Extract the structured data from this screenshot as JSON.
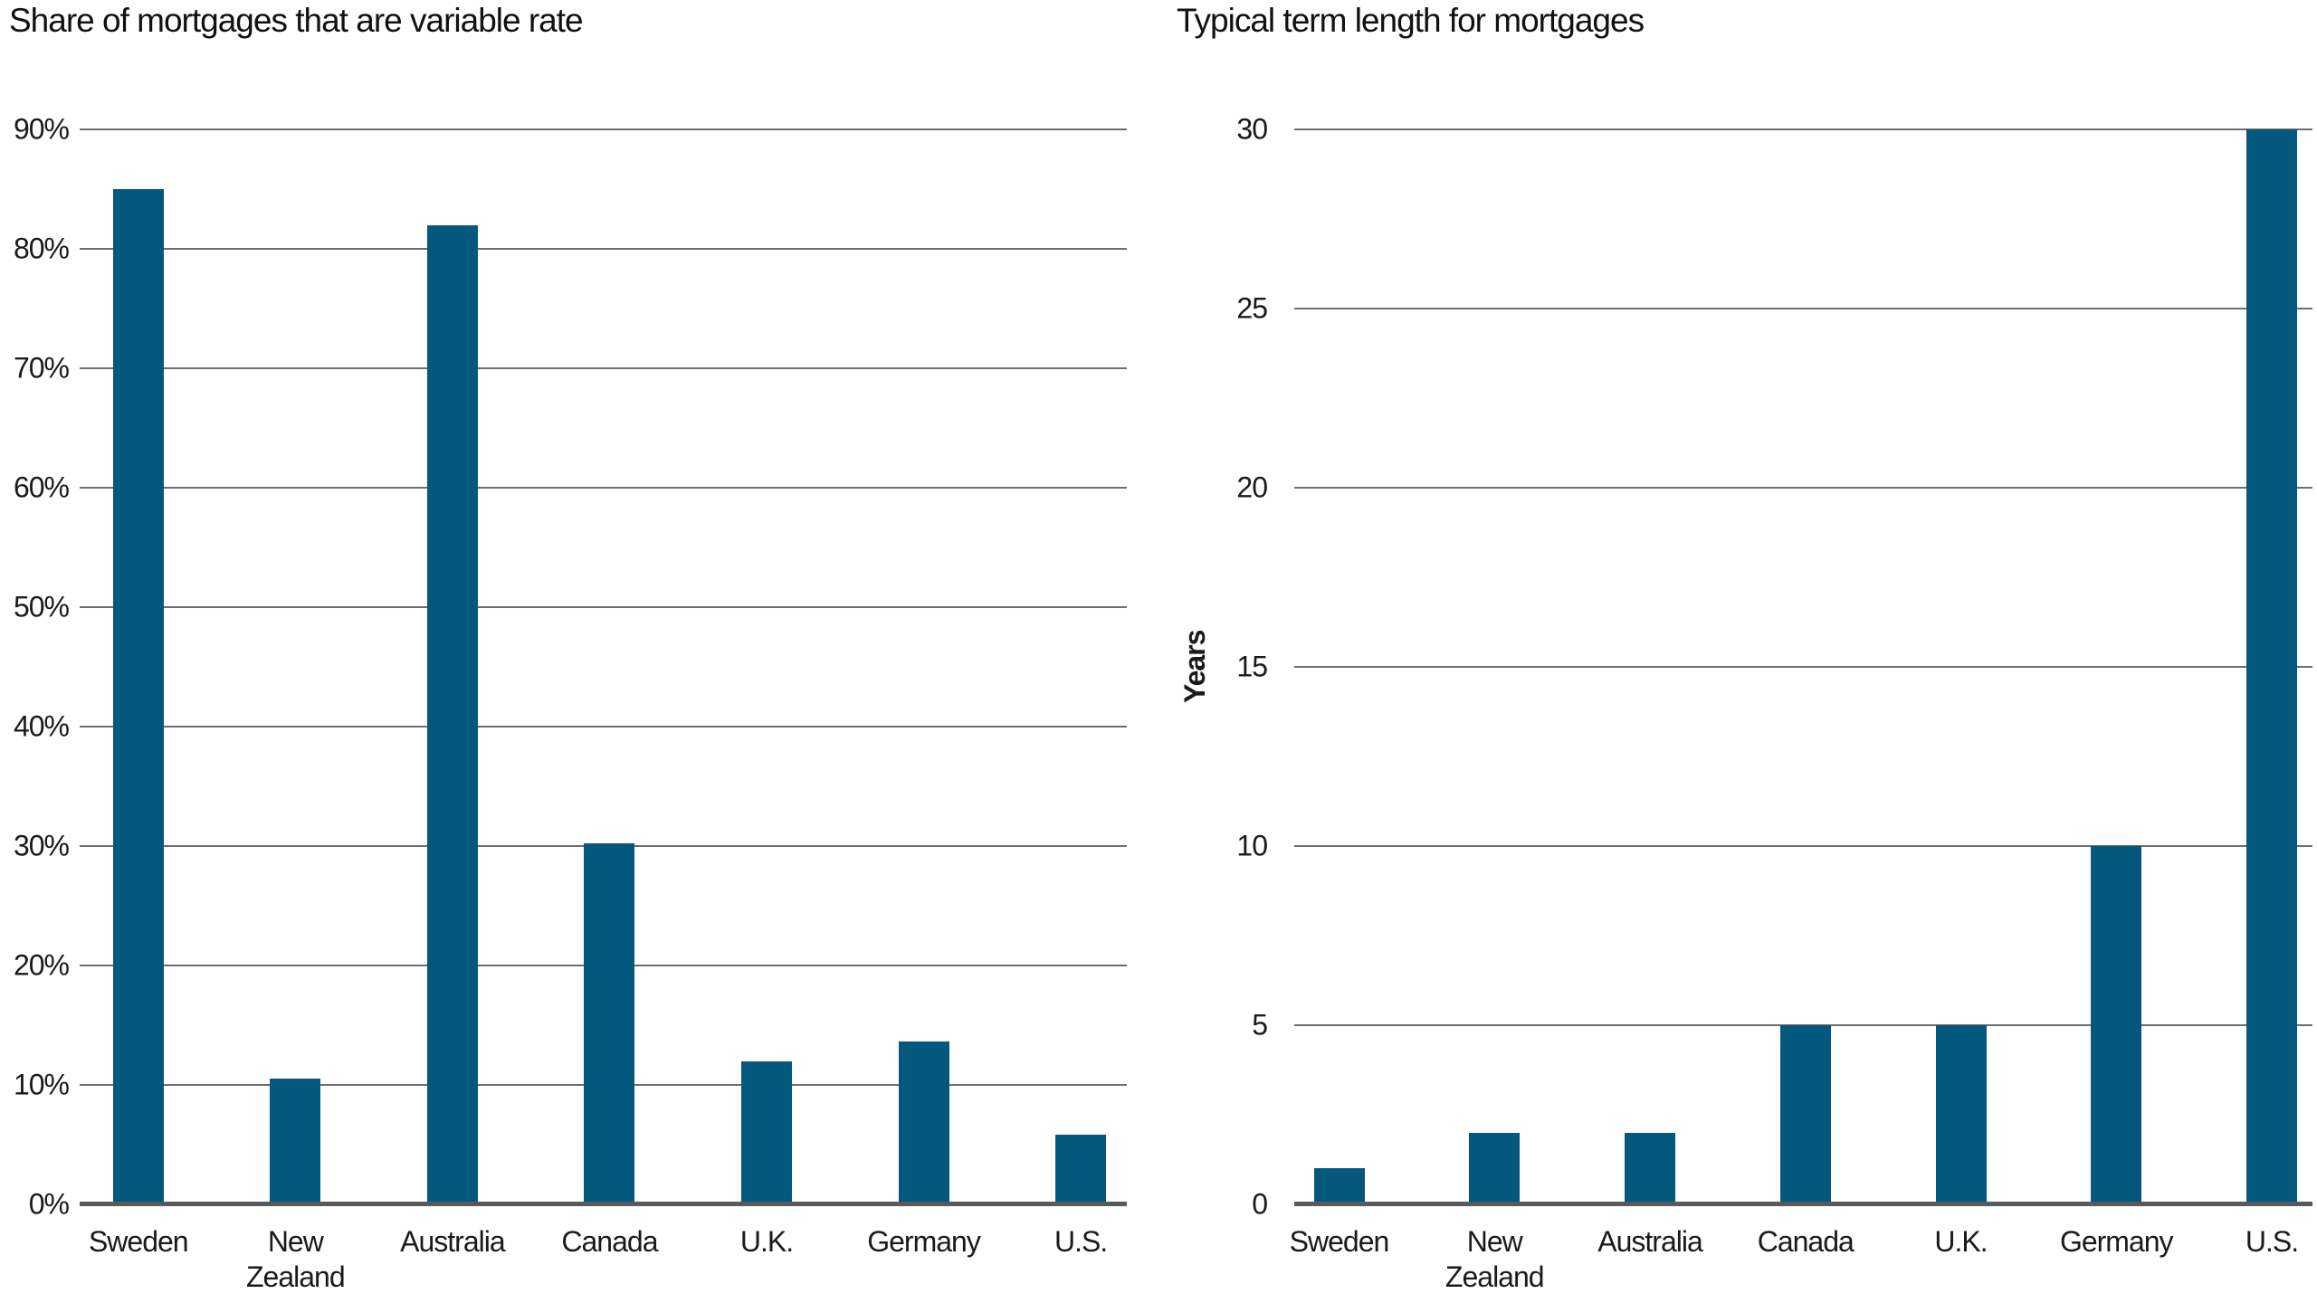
{
  "page": {
    "background": "#ffffff"
  },
  "colors": {
    "bar": "#05587d",
    "gridline": "#6d6e71",
    "baseline": "#58595b",
    "text": "#1a1a1a"
  },
  "chart_data": [
    {
      "type": "bar",
      "title": "Share of mortgages that are variable rate",
      "categories": [
        "Sweden",
        "New Zealand",
        "Australia",
        "Canada",
        "U.K.",
        "Germany",
        "U.S."
      ],
      "values": [
        85,
        10.5,
        82,
        30.2,
        12,
        13.6,
        5.8
      ],
      "xlabel": "",
      "ylabel": "",
      "ylim": [
        0,
        90
      ],
      "yticks": [
        90,
        80,
        70,
        60,
        50,
        40,
        30,
        20,
        10,
        0
      ],
      "tick_labels": [
        "90%",
        "80%",
        "70%",
        "60%",
        "50%",
        "40%",
        "30%",
        "20%",
        "10%",
        "0%"
      ],
      "grid": "horizontal",
      "legend": "none"
    },
    {
      "type": "bar",
      "title": "Typical term length for mortgages",
      "categories": [
        "Sweden",
        "New Zealand",
        "Australia",
        "Canada",
        "U.K.",
        "Germany",
        "U.S."
      ],
      "values": [
        1,
        2,
        2,
        5,
        5,
        10,
        30
      ],
      "xlabel": "",
      "ylabel": "Years",
      "ylim": [
        0,
        30
      ],
      "yticks": [
        30,
        25,
        20,
        15,
        10,
        5,
        0
      ],
      "tick_labels": [
        "30",
        "25",
        "20",
        "15",
        "10",
        "5",
        "0"
      ],
      "grid": "horizontal",
      "legend": "none"
    }
  ]
}
